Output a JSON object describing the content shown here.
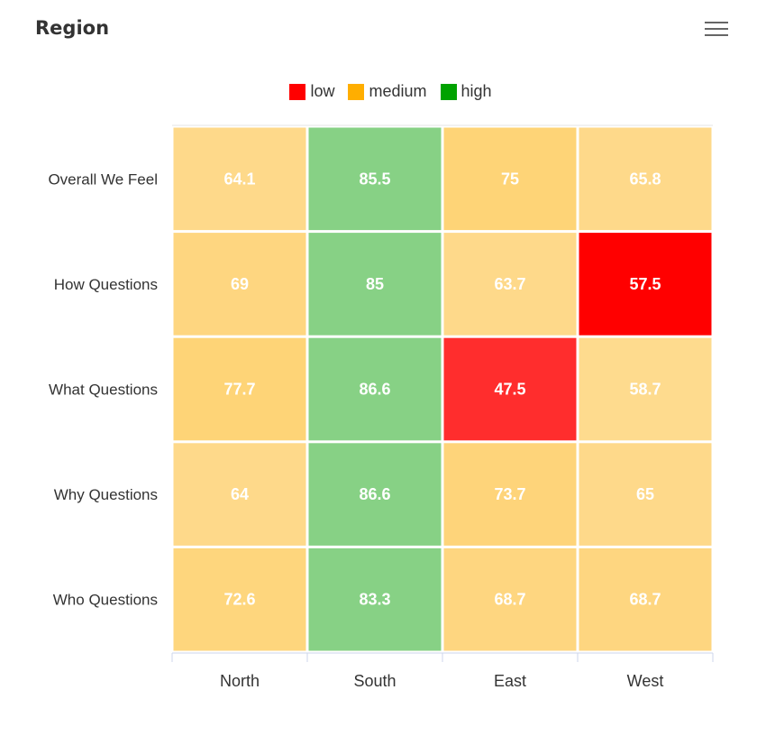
{
  "header": {
    "title": "Region",
    "menu_icon": "hamburger-menu-icon"
  },
  "chart_data": {
    "type": "heatmap",
    "title": "Region",
    "x_categories": [
      "North",
      "South",
      "East",
      "West"
    ],
    "y_categories": [
      "Overall We Feel",
      "How Questions",
      "What Questions",
      "Why Questions",
      "Who Questions"
    ],
    "values": [
      [
        64.1,
        85.5,
        75,
        65.8
      ],
      [
        69,
        85,
        63.7,
        57.5
      ],
      [
        77.7,
        86.6,
        47.5,
        58.7
      ],
      [
        64,
        86.6,
        73.7,
        65
      ],
      [
        72.6,
        83.3,
        68.7,
        68.7
      ]
    ],
    "cell_colors": [
      [
        "#fed98a",
        "#87d185",
        "#fed477",
        "#fed98a"
      ],
      [
        "#fed680",
        "#87d185",
        "#fed98a",
        "#ff0000"
      ],
      [
        "#fed477",
        "#87d185",
        "#ff2d2d",
        "#fedb8e"
      ],
      [
        "#fed98a",
        "#87d185",
        "#fed47a",
        "#fed98a"
      ],
      [
        "#fed67d",
        "#87d185",
        "#fed680",
        "#fed680"
      ]
    ],
    "legend": [
      {
        "label": "low",
        "color": "#ff0000"
      },
      {
        "label": "medium",
        "color": "#ffae00"
      },
      {
        "label": "high",
        "color": "#00a200"
      }
    ],
    "legend_position": "top-center",
    "label_color": "#ffffff"
  }
}
